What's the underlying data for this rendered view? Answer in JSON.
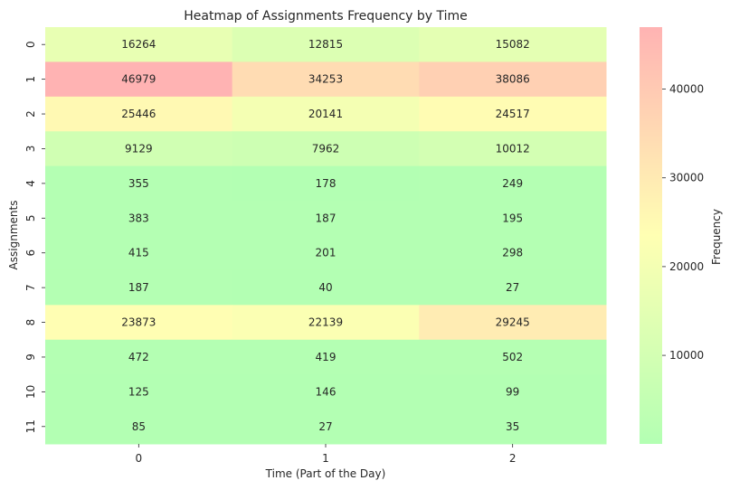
{
  "chart_data": {
    "type": "heatmap",
    "title": "Heatmap of Assignments Frequency by Time",
    "xlabel": "Time (Part of the Day)",
    "ylabel": "Assignments",
    "x_categories": [
      "0",
      "1",
      "2"
    ],
    "y_categories": [
      "0",
      "1",
      "2",
      "3",
      "4",
      "5",
      "6",
      "7",
      "8",
      "9",
      "10",
      "11"
    ],
    "values": [
      [
        16264,
        12815,
        15082
      ],
      [
        46979,
        34253,
        38086
      ],
      [
        25446,
        20141,
        24517
      ],
      [
        9129,
        7962,
        10012
      ],
      [
        355,
        178,
        249
      ],
      [
        383,
        187,
        195
      ],
      [
        415,
        201,
        298
      ],
      [
        187,
        40,
        27
      ],
      [
        23873,
        22139,
        29245
      ],
      [
        472,
        419,
        502
      ],
      [
        125,
        146,
        99
      ],
      [
        85,
        27,
        35
      ]
    ],
    "colorbar": {
      "label": "Frequency",
      "ticks": [
        10000,
        20000,
        30000,
        40000
      ],
      "range": [
        27,
        46979
      ],
      "colors": [
        "#b3ffb3",
        "#ffffb3",
        "#ffb3b3"
      ]
    },
    "annotations": "cell values shown in each cell",
    "grid": false
  }
}
